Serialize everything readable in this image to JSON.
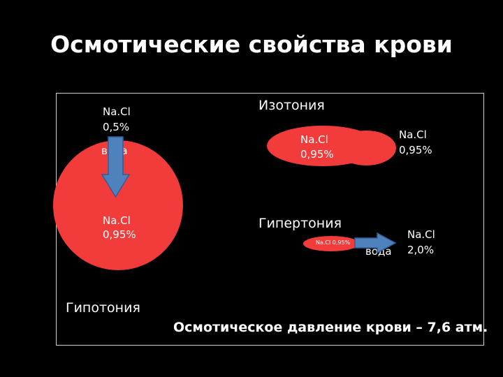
{
  "title": "Осмотические свойства крови",
  "hypotonia": {
    "header": "Гипотония",
    "outside_name": "Na.Cl",
    "outside_value": "0,5%",
    "water": "вода",
    "inside_name": "Na.Cl",
    "inside_value": "0,95%"
  },
  "isotonia": {
    "header": "Изотония",
    "inside_name": "Na.Cl",
    "inside_value": "0,95%",
    "outside_name": "Na.Cl",
    "outside_value": "0,95%"
  },
  "hypertonia": {
    "header": "Гипертония",
    "cell_label": "Na.Cl 0,95%",
    "water": "вода",
    "outside_name": "Na.Cl",
    "outside_value": "2,0%"
  },
  "footer": "Осмотическое давление крови – 7,6 атм.",
  "colors": {
    "background": "#000000",
    "cell": "#f23b3b",
    "arrow_fill": "#4f81bd",
    "arrow_stroke": "#2f5f96"
  }
}
